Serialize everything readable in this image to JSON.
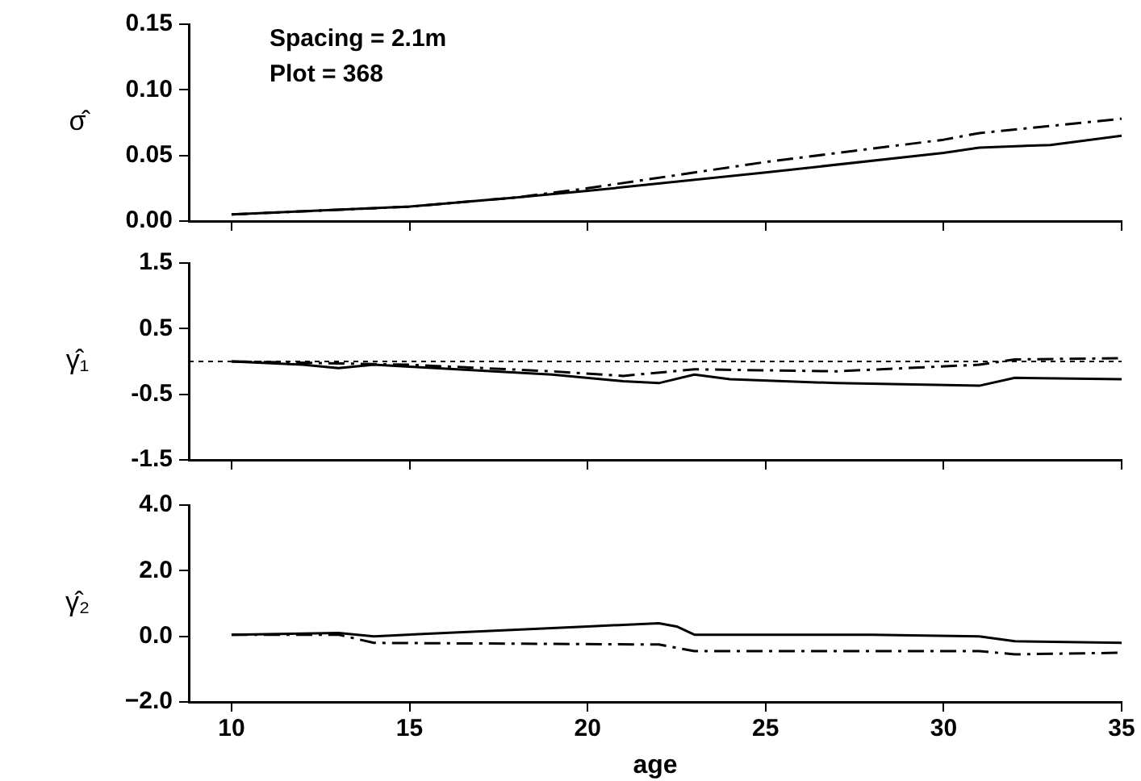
{
  "chart_data": [
    {
      "type": "line",
      "ylabel": "σ̂",
      "annotations": [
        "Spacing = 2.1m",
        "Plot = 368"
      ],
      "xlim": [
        8.8,
        35
      ],
      "xticks": [
        10,
        15,
        20,
        25,
        30,
        35
      ],
      "ylim": [
        0,
        0.15
      ],
      "yticks": [
        {
          "value": 0,
          "label": "0.00"
        },
        {
          "value": 0.05,
          "label": "0.05"
        },
        {
          "value": 0.1,
          "label": "0.10"
        },
        0.15
      ],
      "tick_labels": "y",
      "grid": false,
      "legend": false,
      "marker": "none",
      "series": [
        {
          "color": "#000000",
          "line_style": "solid",
          "x": [
            10,
            15,
            18,
            20,
            25,
            30,
            31,
            33,
            35
          ],
          "values": [
            0.005,
            0.011,
            0.018,
            0.023,
            0.037,
            0.052,
            0.056,
            0.058,
            0.065
          ]
        },
        {
          "color": "#000000",
          "line_style": "dashed",
          "x": [
            10,
            15,
            18,
            20,
            25,
            30,
            31,
            35
          ],
          "values": [
            0.005,
            0.011,
            0.018,
            0.025,
            0.045,
            0.062,
            0.067,
            0.078
          ]
        }
      ]
    },
    {
      "type": "line",
      "ylabel": "γ̂₁",
      "xlim": [
        8.8,
        35
      ],
      "xticks": [
        10,
        15,
        20,
        25,
        30,
        35
      ],
      "ylim": [
        -1.5,
        1.5
      ],
      "yticks": [
        -1.5,
        -0.5,
        0.5,
        1.5
      ],
      "tick_labels": "y",
      "grid": false,
      "legend": false,
      "marker": "none",
      "ref_lines": [
        {
          "axis": "y",
          "value": 0,
          "line_style": "dotted"
        }
      ],
      "series": [
        {
          "color": "#000000",
          "line_style": "solid",
          "x": [
            10,
            12,
            13,
            14,
            15,
            19,
            21,
            22,
            23,
            24,
            27,
            31,
            32,
            35
          ],
          "values": [
            0,
            -0.05,
            -0.1,
            -0.05,
            -0.08,
            -0.2,
            -0.3,
            -0.33,
            -0.2,
            -0.27,
            -0.33,
            -0.37,
            -0.25,
            -0.27
          ]
        },
        {
          "color": "#000000",
          "line_style": "dashed",
          "x": [
            10,
            15,
            19,
            21,
            23,
            27,
            31,
            32,
            35
          ],
          "values": [
            0,
            -0.05,
            -0.15,
            -0.22,
            -0.12,
            -0.15,
            -0.05,
            0.03,
            0.05
          ]
        }
      ]
    },
    {
      "type": "line",
      "ylabel": "γ̂₂",
      "xlabel": "age",
      "xlim": [
        8.8,
        35
      ],
      "xticks": [
        10,
        15,
        20,
        25,
        30,
        35
      ],
      "ylim": [
        -2,
        4
      ],
      "yticks": [
        {
          "value": -2,
          "label": "−2.0"
        },
        {
          "value": 0,
          "label": "0.0"
        },
        {
          "value": 2,
          "label": "2.0"
        },
        {
          "value": 4,
          "label": "4.0"
        }
      ],
      "grid": false,
      "legend": false,
      "marker": "none",
      "series": [
        {
          "color": "#000000",
          "line_style": "solid",
          "x": [
            10,
            13,
            14,
            16,
            20,
            22,
            22.5,
            23,
            24,
            28,
            31,
            32,
            35
          ],
          "values": [
            0.05,
            0.1,
            0.0,
            0.1,
            0.3,
            0.4,
            0.3,
            0.05,
            0.05,
            0.05,
            0.0,
            -0.15,
            -0.2
          ]
        },
        {
          "color": "#000000",
          "line_style": "dashed",
          "x": [
            10,
            13,
            14,
            22,
            23,
            31,
            32,
            35
          ],
          "values": [
            0.05,
            0.05,
            -0.2,
            -0.25,
            -0.45,
            -0.45,
            -0.55,
            -0.5
          ]
        }
      ]
    }
  ]
}
